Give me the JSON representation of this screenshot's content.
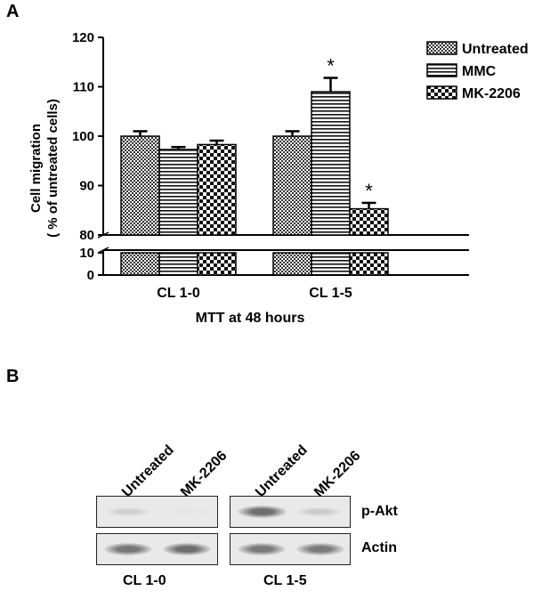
{
  "panels": {
    "a": "A",
    "b": "B"
  },
  "chart_data": {
    "type": "bar",
    "categories": [
      "CL 1-0",
      "CL 1-5"
    ],
    "series": [
      {
        "name": "Untreated",
        "values": [
          100.0,
          100.0
        ],
        "errors": [
          1.0,
          1.0
        ],
        "significant": [
          false,
          false
        ]
      },
      {
        "name": "MMC",
        "values": [
          97.3,
          109.0
        ],
        "errors": [
          0.5,
          2.8
        ],
        "significant": [
          false,
          true
        ]
      },
      {
        "name": "MK-2206",
        "values": [
          98.3,
          85.3
        ],
        "errors": [
          0.8,
          1.2
        ],
        "significant": [
          false,
          true
        ]
      }
    ],
    "ylabel_line1": "Cell migration",
    "ylabel_line2": "( % of untreated cells)",
    "xlabel": "MTT at 48 hours",
    "upper_ylim": [
      80,
      120
    ],
    "lower_ylim": [
      0,
      10
    ],
    "upper_ticks": [
      "80",
      "90",
      "100",
      "110",
      "120"
    ],
    "lower_ticks": [
      "0",
      "10"
    ],
    "significance_marker": "*",
    "axis_break": true,
    "legend_position": "top-right"
  },
  "blot": {
    "lanes": [
      "Untreated",
      "MK-2206",
      "Untreated",
      "MK-2206"
    ],
    "proteins": [
      "p-Akt",
      "Actin"
    ],
    "groups": [
      "CL 1-0",
      "CL 1-5"
    ],
    "intensity": {
      "p-Akt": [
        0.15,
        0.0,
        0.8,
        0.18
      ],
      "Actin": [
        0.75,
        0.8,
        0.72,
        0.72
      ]
    }
  }
}
